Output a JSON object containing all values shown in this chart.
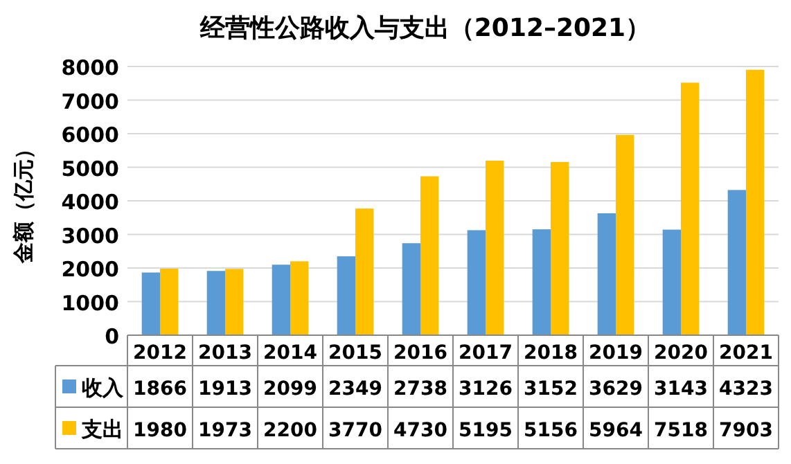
{
  "chart_data": {
    "type": "bar",
    "title": "经营性公路收入与支出（2012–2021）",
    "ylabel": "金额（亿元）",
    "categories": [
      "2012",
      "2013",
      "2014",
      "2015",
      "2016",
      "2017",
      "2018",
      "2019",
      "2020",
      "2021"
    ],
    "series": [
      {
        "name": "收入",
        "color": "#5b9bd5",
        "values": [
          1866,
          1913,
          2099,
          2349,
          2738,
          3126,
          3152,
          3629,
          3143,
          4323
        ]
      },
      {
        "name": "支出",
        "color": "#ffc000",
        "values": [
          1980,
          1973,
          2200,
          3770,
          4730,
          5195,
          5156,
          5964,
          7518,
          7903
        ]
      }
    ],
    "ylim": [
      0,
      8000
    ],
    "yticks": [
      0,
      1000,
      2000,
      3000,
      4000,
      5000,
      6000,
      7000,
      8000
    ],
    "grid": "y",
    "data_labels": true,
    "legend": "bottom"
  }
}
